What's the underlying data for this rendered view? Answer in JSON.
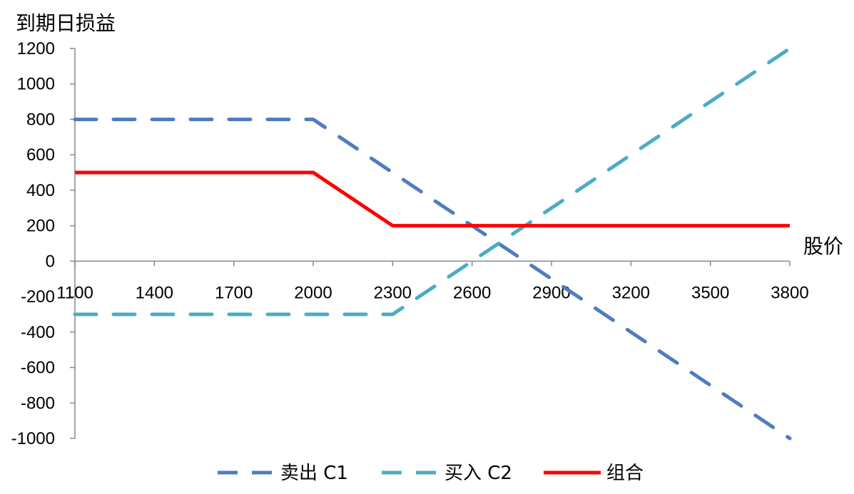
{
  "chart_data": {
    "type": "line",
    "title": "",
    "ylabel": "到期日损益",
    "xlabel": "股价",
    "x_ticks": [
      1100,
      1400,
      1700,
      2000,
      2300,
      2600,
      2900,
      3200,
      3500,
      3800
    ],
    "y_ticks": [
      -1000,
      -800,
      -600,
      -400,
      -200,
      0,
      200,
      400,
      600,
      800,
      1000,
      1200
    ],
    "xlim": [
      1100,
      3800
    ],
    "ylim": [
      -1000,
      1200
    ],
    "grid": false,
    "legend_position": "bottom",
    "series": [
      {
        "name": "卖出 C1",
        "color": "#4f7cbf",
        "dash": true,
        "points": [
          [
            1100,
            800
          ],
          [
            2000,
            800
          ],
          [
            3800,
            -1000
          ]
        ]
      },
      {
        "name": "买入 C2",
        "color": "#4bacc6",
        "dash": true,
        "points": [
          [
            1100,
            -300
          ],
          [
            2300,
            -300
          ],
          [
            3800,
            1200
          ]
        ]
      },
      {
        "name": "组合",
        "color": "#ff0000",
        "dash": false,
        "points": [
          [
            1100,
            500
          ],
          [
            2000,
            500
          ],
          [
            2300,
            200
          ],
          [
            3800,
            200
          ]
        ]
      }
    ]
  }
}
